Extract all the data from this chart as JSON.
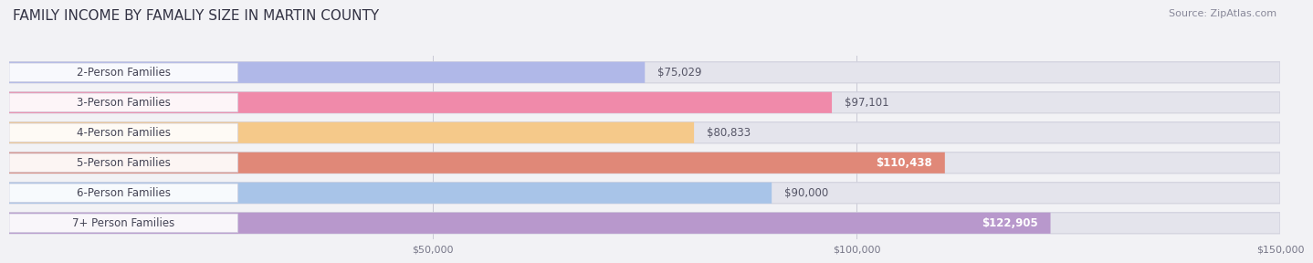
{
  "title": "FAMILY INCOME BY FAMALIY SIZE IN MARTIN COUNTY",
  "source": "Source: ZipAtlas.com",
  "categories": [
    "2-Person Families",
    "3-Person Families",
    "4-Person Families",
    "5-Person Families",
    "6-Person Families",
    "7+ Person Families"
  ],
  "values": [
    75029,
    97101,
    80833,
    110438,
    90000,
    122905
  ],
  "labels": [
    "$75,029",
    "$97,101",
    "$80,833",
    "$110,438",
    "$90,000",
    "$122,905"
  ],
  "bar_colors": [
    "#b0b8e8",
    "#f08aaa",
    "#f5c98a",
    "#e08878",
    "#a8c4e8",
    "#b898cc"
  ],
  "label_inside": [
    false,
    false,
    false,
    true,
    false,
    true
  ],
  "background_color": "#f2f2f5",
  "bar_bg_color": "#e4e4ec",
  "bar_bg_edge_color": "#d0d0dc",
  "xlim": [
    0,
    150000
  ],
  "xticks": [
    50000,
    100000,
    150000
  ],
  "xtick_labels": [
    "$50,000",
    "$100,000",
    "$150,000"
  ],
  "bar_height": 0.7,
  "title_fontsize": 11,
  "source_fontsize": 8,
  "label_fontsize": 8.5,
  "category_fontsize": 8.5,
  "category_label_color": "#444455",
  "label_outside_color": "#555566",
  "label_inside_color": "#ffffff"
}
